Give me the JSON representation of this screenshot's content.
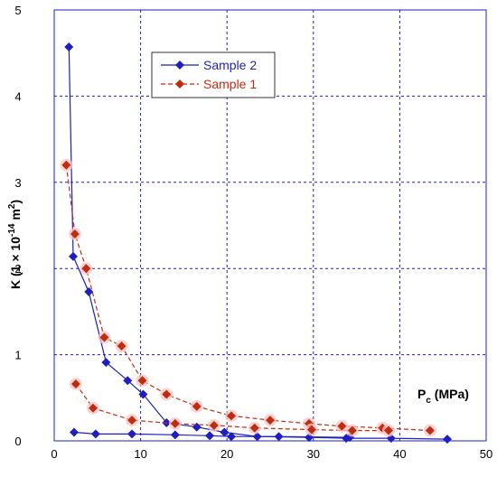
{
  "chart_data": {
    "type": "scatter",
    "xlim": [
      0,
      50
    ],
    "ylim": [
      0,
      5
    ],
    "xticks": [
      0,
      10,
      20,
      30,
      40,
      50
    ],
    "yticks": [
      0,
      1,
      2,
      3,
      4,
      5
    ],
    "grid": true,
    "legend_position": "top-left",
    "xlabel": {
      "main": "P",
      "sub": "c",
      "rest": " (MPa)"
    },
    "ylabel": {
      "main": "K (1 × 10",
      "sup": "-14",
      "mid": " m",
      "sup2": "2",
      "end": ")"
    },
    "series": [
      {
        "name": "Sample 2",
        "color": "#1f1fbf",
        "marker": "diamond",
        "branches": [
          [
            [
              1.7,
              4.57
            ],
            [
              2.2,
              2.14
            ],
            [
              4.0,
              1.73
            ],
            [
              6.0,
              0.91
            ],
            [
              8.5,
              0.7
            ],
            [
              10.3,
              0.54
            ],
            [
              13.0,
              0.21
            ],
            [
              16.5,
              0.16
            ],
            [
              19.7,
              0.1
            ],
            [
              23.5,
              0.05
            ],
            [
              29.5,
              0.04
            ],
            [
              33.8,
              0.03
            ],
            [
              39.0,
              0.03
            ],
            [
              45.5,
              0.02
            ]
          ],
          [
            [
              2.3,
              0.1
            ],
            [
              4.8,
              0.08
            ],
            [
              9.0,
              0.08
            ],
            [
              14.0,
              0.07
            ],
            [
              18.0,
              0.06
            ],
            [
              20.5,
              0.05
            ],
            [
              26.0,
              0.05
            ],
            [
              34.2,
              0.04
            ]
          ]
        ]
      },
      {
        "name": "Sample 1",
        "color": "#c02c10",
        "marker": "diamond",
        "branches": [
          [
            [
              1.4,
              3.2
            ],
            [
              2.4,
              2.4
            ],
            [
              3.7,
              2.0
            ],
            [
              5.8,
              1.2
            ],
            [
              7.8,
              1.1
            ],
            [
              10.2,
              0.7
            ],
            [
              13.0,
              0.54
            ],
            [
              16.5,
              0.4
            ],
            [
              20.5,
              0.29
            ],
            [
              25.0,
              0.24
            ],
            [
              29.5,
              0.2
            ],
            [
              33.3,
              0.17
            ],
            [
              38.0,
              0.15
            ],
            [
              43.5,
              0.12
            ]
          ],
          [
            [
              2.5,
              0.66
            ],
            [
              4.5,
              0.38
            ],
            [
              9.0,
              0.24
            ],
            [
              14.0,
              0.2
            ],
            [
              18.5,
              0.18
            ],
            [
              23.2,
              0.15
            ],
            [
              29.8,
              0.13
            ],
            [
              34.5,
              0.12
            ],
            [
              38.7,
              0.12
            ]
          ]
        ]
      }
    ]
  }
}
